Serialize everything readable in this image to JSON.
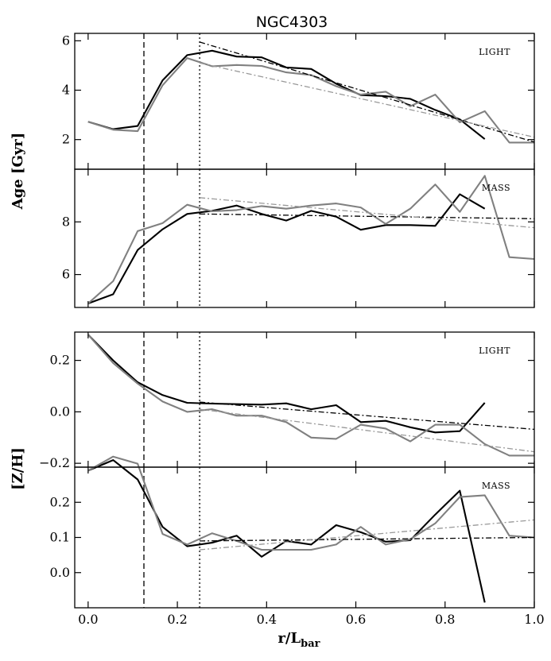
{
  "chart_data": [
    {
      "type": "line",
      "title": "NGC4303",
      "panel_label": "LIGHT",
      "ylabel": "Age [Gyr]",
      "xlim": [
        -0.03,
        1.0
      ],
      "ylim": [
        0.8,
        6.3
      ],
      "yticks": [
        2,
        4,
        6
      ],
      "x": [
        0.0,
        0.056,
        0.111,
        0.167,
        0.222,
        0.278,
        0.333,
        0.389,
        0.444,
        0.5,
        0.556,
        0.611,
        0.667,
        0.722,
        0.778,
        0.833,
        0.889
      ],
      "series": [
        {
          "color": "#000000",
          "style": "solid",
          "values": [
            2.72,
            2.42,
            2.55,
            4.4,
            5.42,
            5.6,
            5.36,
            5.33,
            4.92,
            4.86,
            4.26,
            3.8,
            3.76,
            3.65,
            3.2,
            2.82,
            2.02
          ]
        },
        {
          "color": "#808080",
          "style": "solid",
          "x": [
            0.0,
            0.056,
            0.111,
            0.167,
            0.222,
            0.278,
            0.333,
            0.389,
            0.444,
            0.5,
            0.556,
            0.611,
            0.667,
            0.722,
            0.778,
            0.833,
            0.889,
            0.944,
            1.0
          ],
          "values": [
            2.72,
            2.4,
            2.34,
            4.2,
            5.3,
            4.97,
            5.02,
            4.98,
            4.72,
            4.61,
            4.16,
            3.82,
            3.94,
            3.35,
            3.82,
            2.7,
            3.15,
            1.88,
            1.88
          ]
        },
        {
          "color": "#000000",
          "style": "dashdot",
          "x": [
            0.25,
            1.0
          ],
          "values": [
            5.95,
            1.9
          ]
        },
        {
          "color": "#999999",
          "style": "dashdot",
          "x": [
            0.25,
            1.0
          ],
          "values": [
            5.1,
            2.1
          ]
        }
      ]
    },
    {
      "type": "line",
      "panel_label": "MASS",
      "ylabel": "Age [Gyr]",
      "xlim": [
        -0.03,
        1.0
      ],
      "ylim": [
        4.75,
        10.0
      ],
      "yticks": [
        6,
        8
      ],
      "x": [
        0.0,
        0.056,
        0.111,
        0.167,
        0.222,
        0.278,
        0.333,
        0.389,
        0.444,
        0.5,
        0.556,
        0.611,
        0.667,
        0.722,
        0.778,
        0.833,
        0.889
      ],
      "series": [
        {
          "color": "#000000",
          "style": "solid",
          "values": [
            4.9,
            5.25,
            6.93,
            7.72,
            8.3,
            8.42,
            8.62,
            8.3,
            8.05,
            8.42,
            8.2,
            7.7,
            7.88,
            7.88,
            7.85,
            9.05,
            8.5
          ]
        },
        {
          "color": "#808080",
          "style": "solid",
          "x": [
            0.0,
            0.056,
            0.111,
            0.167,
            0.222,
            0.278,
            0.333,
            0.389,
            0.444,
            0.5,
            0.556,
            0.611,
            0.667,
            0.722,
            0.778,
            0.833,
            0.889,
            0.944,
            1.0
          ],
          "values": [
            4.9,
            5.75,
            7.65,
            7.95,
            8.65,
            8.4,
            8.45,
            8.6,
            8.5,
            8.62,
            8.7,
            8.55,
            7.92,
            8.5,
            9.42,
            8.38,
            9.75,
            6.66,
            6.59
          ]
        },
        {
          "color": "#000000",
          "style": "dashdot",
          "x": [
            0.25,
            1.0
          ],
          "values": [
            8.3,
            8.12
          ]
        },
        {
          "color": "#999999",
          "style": "dashdot",
          "x": [
            0.25,
            1.0
          ],
          "values": [
            8.92,
            7.78
          ]
        }
      ]
    },
    {
      "type": "line",
      "panel_label": "LIGHT",
      "ylabel": "[Z/H]",
      "xlim": [
        -0.03,
        1.0
      ],
      "ylim": [
        -0.215,
        0.31
      ],
      "yticks": [
        -0.2,
        0.0,
        0.2
      ],
      "x": [
        0.0,
        0.056,
        0.111,
        0.167,
        0.222,
        0.278,
        0.333,
        0.389,
        0.444,
        0.5,
        0.556,
        0.611,
        0.667,
        0.722,
        0.778,
        0.833,
        0.889
      ],
      "series": [
        {
          "color": "#000000",
          "style": "solid",
          "values": [
            0.3,
            0.2,
            0.115,
            0.065,
            0.035,
            0.032,
            0.03,
            0.028,
            0.033,
            0.01,
            0.026,
            -0.04,
            -0.035,
            -0.06,
            -0.08,
            -0.075,
            0.035
          ]
        },
        {
          "color": "#808080",
          "style": "solid",
          "x": [
            0.0,
            0.056,
            0.111,
            0.167,
            0.222,
            0.278,
            0.333,
            0.389,
            0.444,
            0.5,
            0.556,
            0.611,
            0.667,
            0.722,
            0.778,
            0.833,
            0.889,
            0.944,
            1.0
          ],
          "values": [
            0.3,
            0.19,
            0.11,
            0.04,
            0.0,
            0.01,
            -0.015,
            -0.015,
            -0.04,
            -0.1,
            -0.105,
            -0.05,
            -0.065,
            -0.115,
            -0.05,
            -0.05,
            -0.125,
            -0.17,
            -0.17
          ]
        },
        {
          "color": "#000000",
          "style": "dashdot",
          "x": [
            0.25,
            1.0
          ],
          "values": [
            0.038,
            -0.068
          ]
        },
        {
          "color": "#999999",
          "style": "dashdot",
          "x": [
            0.25,
            1.0
          ],
          "values": [
            0.01,
            -0.155
          ]
        }
      ]
    },
    {
      "type": "line",
      "panel_label": "MASS",
      "ylabel": "[Z/H]",
      "xlabel": "r/L",
      "xlabel_sub": "bar",
      "xlim": [
        -0.03,
        1.0
      ],
      "xticks": [
        0.0,
        0.2,
        0.4,
        0.6,
        0.8,
        1.0
      ],
      "ylim": [
        -0.1,
        0.3
      ],
      "yticks": [
        0.0,
        0.1,
        0.2
      ],
      "x": [
        0.0,
        0.056,
        0.111,
        0.167,
        0.222,
        0.278,
        0.333,
        0.389,
        0.444,
        0.5,
        0.556,
        0.611,
        0.667,
        0.722,
        0.778,
        0.833,
        0.889
      ],
      "series": [
        {
          "color": "#000000",
          "style": "solid",
          "values": [
            0.29,
            0.32,
            0.265,
            0.13,
            0.075,
            0.085,
            0.105,
            0.045,
            0.09,
            0.08,
            0.135,
            0.115,
            0.088,
            0.092,
            0.165,
            0.233,
            -0.085
          ]
        },
        {
          "color": "#808080",
          "style": "solid",
          "x": [
            0.0,
            0.056,
            0.111,
            0.167,
            0.222,
            0.278,
            0.333,
            0.389,
            0.444,
            0.5,
            0.556,
            0.611,
            0.667,
            0.722,
            0.778,
            0.833,
            0.889,
            0.944,
            1.0
          ],
          "values": [
            0.29,
            0.33,
            0.31,
            0.11,
            0.08,
            0.112,
            0.09,
            0.065,
            0.065,
            0.065,
            0.08,
            0.13,
            0.08,
            0.095,
            0.14,
            0.215,
            0.22,
            0.105,
            0.1
          ]
        },
        {
          "color": "#000000",
          "style": "dashdot",
          "x": [
            0.25,
            1.0
          ],
          "values": [
            0.09,
            0.1
          ]
        },
        {
          "color": "#999999",
          "style": "dashdot",
          "x": [
            0.25,
            1.0
          ],
          "values": [
            0.065,
            0.15
          ]
        }
      ]
    }
  ],
  "reference_lines": [
    {
      "x": 0.125,
      "style": "dashed",
      "color": "#555555"
    },
    {
      "x": 0.25,
      "style": "dotted",
      "color": "#555555"
    }
  ],
  "x_axis": {
    "ticks": [
      "0.0",
      "0.2",
      "0.4",
      "0.6",
      "0.8",
      "1.0"
    ]
  }
}
